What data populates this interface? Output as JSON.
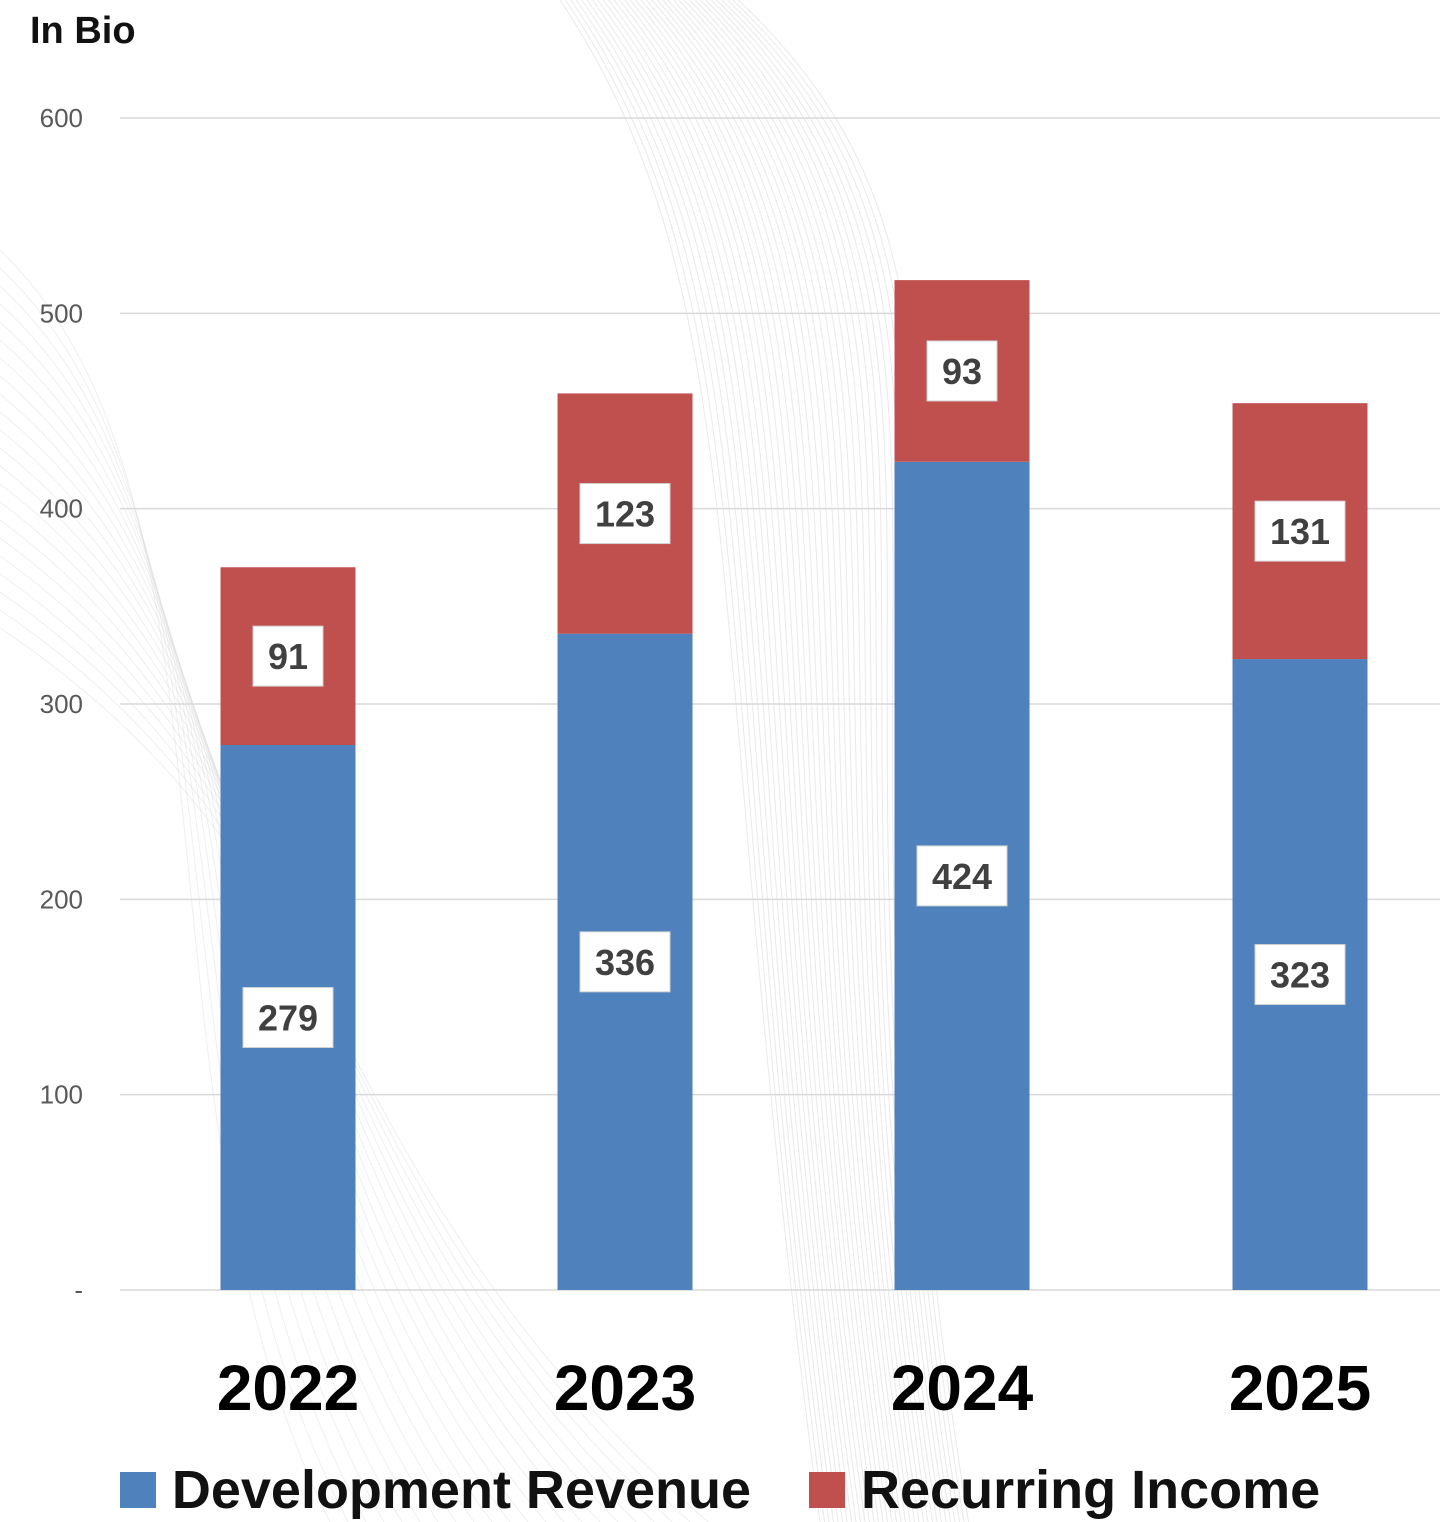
{
  "unit_label": "In Bio",
  "colors": {
    "development": "#4f81bd",
    "recurring": "#c0504d",
    "grid": "#d9d9d9",
    "tick_text": "#595959",
    "category_text": "#000000",
    "data_label_text": "#404040"
  },
  "chart_data": {
    "type": "bar",
    "stacked": true,
    "categories": [
      "2022",
      "2023",
      "2024",
      "2025"
    ],
    "series": [
      {
        "name": "Development Revenue",
        "values": [
          279,
          336,
          424,
          323
        ]
      },
      {
        "name": "Recurring Income",
        "values": [
          91,
          123,
          93,
          131
        ]
      }
    ],
    "ylim": [
      0,
      600
    ],
    "yticks": [
      0,
      100,
      200,
      300,
      400,
      500,
      600
    ],
    "ytick_labels": [
      "-",
      "100",
      "200",
      "300",
      "400",
      "500",
      "600"
    ],
    "ylabel": "In Bio",
    "grid": true,
    "legend_position": "bottom"
  }
}
